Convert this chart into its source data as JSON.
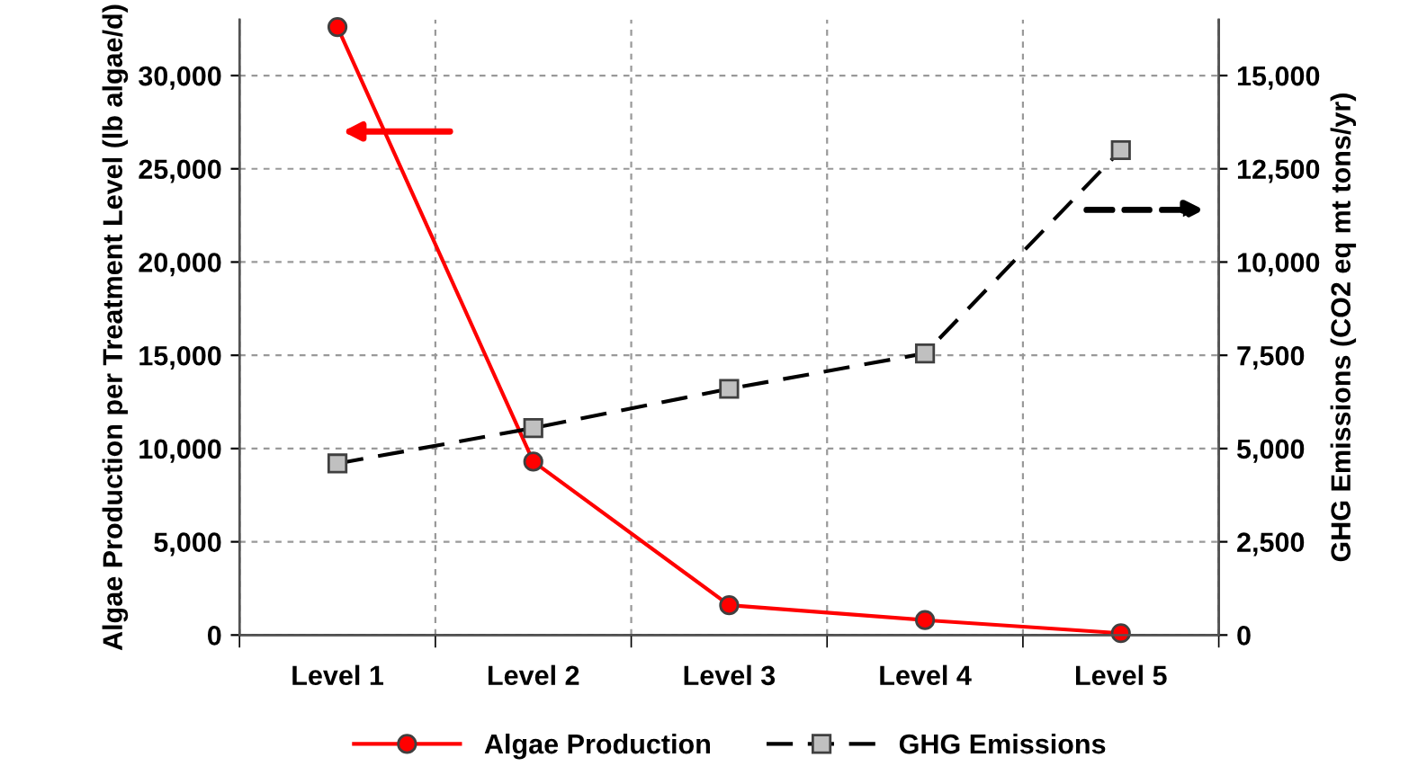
{
  "chart_data": {
    "type": "line",
    "categories": [
      "Level 1",
      "Level 2",
      "Level 3",
      "Level 4",
      "Level 5"
    ],
    "ylabel": "Algae Production per Treatment Level (lb algae/d)",
    "y2label": "GHG Emissions (CO2 eq mt tons/yr)",
    "series": [
      {
        "name": "Algae Production",
        "color": "#ff0000",
        "values": [
          32600,
          9300,
          1600,
          800,
          100
        ],
        "marker": "circle",
        "line_style": "solid"
      },
      {
        "name": "GHG Emissions",
        "color": "#000000",
        "values": [
          4600,
          5550,
          6600,
          7550,
          13000
        ],
        "axis": "y2",
        "marker": "square",
        "line_style": "dashed"
      }
    ],
    "ylim": [
      0,
      33000
    ],
    "yticks": [
      {
        "value": 0,
        "label": "0"
      },
      {
        "value": 5000,
        "label": "5,000"
      },
      {
        "value": 10000,
        "label": "10,000"
      },
      {
        "value": 15000,
        "label": "15,000"
      },
      {
        "value": 20000,
        "label": "20,000"
      },
      {
        "value": 25000,
        "label": "25,000"
      },
      {
        "value": 30000,
        "label": "30,000"
      }
    ],
    "y2lim": [
      0,
      16500
    ],
    "y2ticks": [
      {
        "value": 0,
        "label": "0"
      },
      {
        "value": 2500,
        "label": "2,500"
      },
      {
        "value": 5000,
        "label": "5,000"
      },
      {
        "value": 7500,
        "label": "7,500"
      },
      {
        "value": 10000,
        "label": "10,000"
      },
      {
        "value": 12500,
        "label": "12,500"
      },
      {
        "value": 15000,
        "label": "15,000"
      }
    ],
    "grid": true,
    "legend": "bottom"
  }
}
